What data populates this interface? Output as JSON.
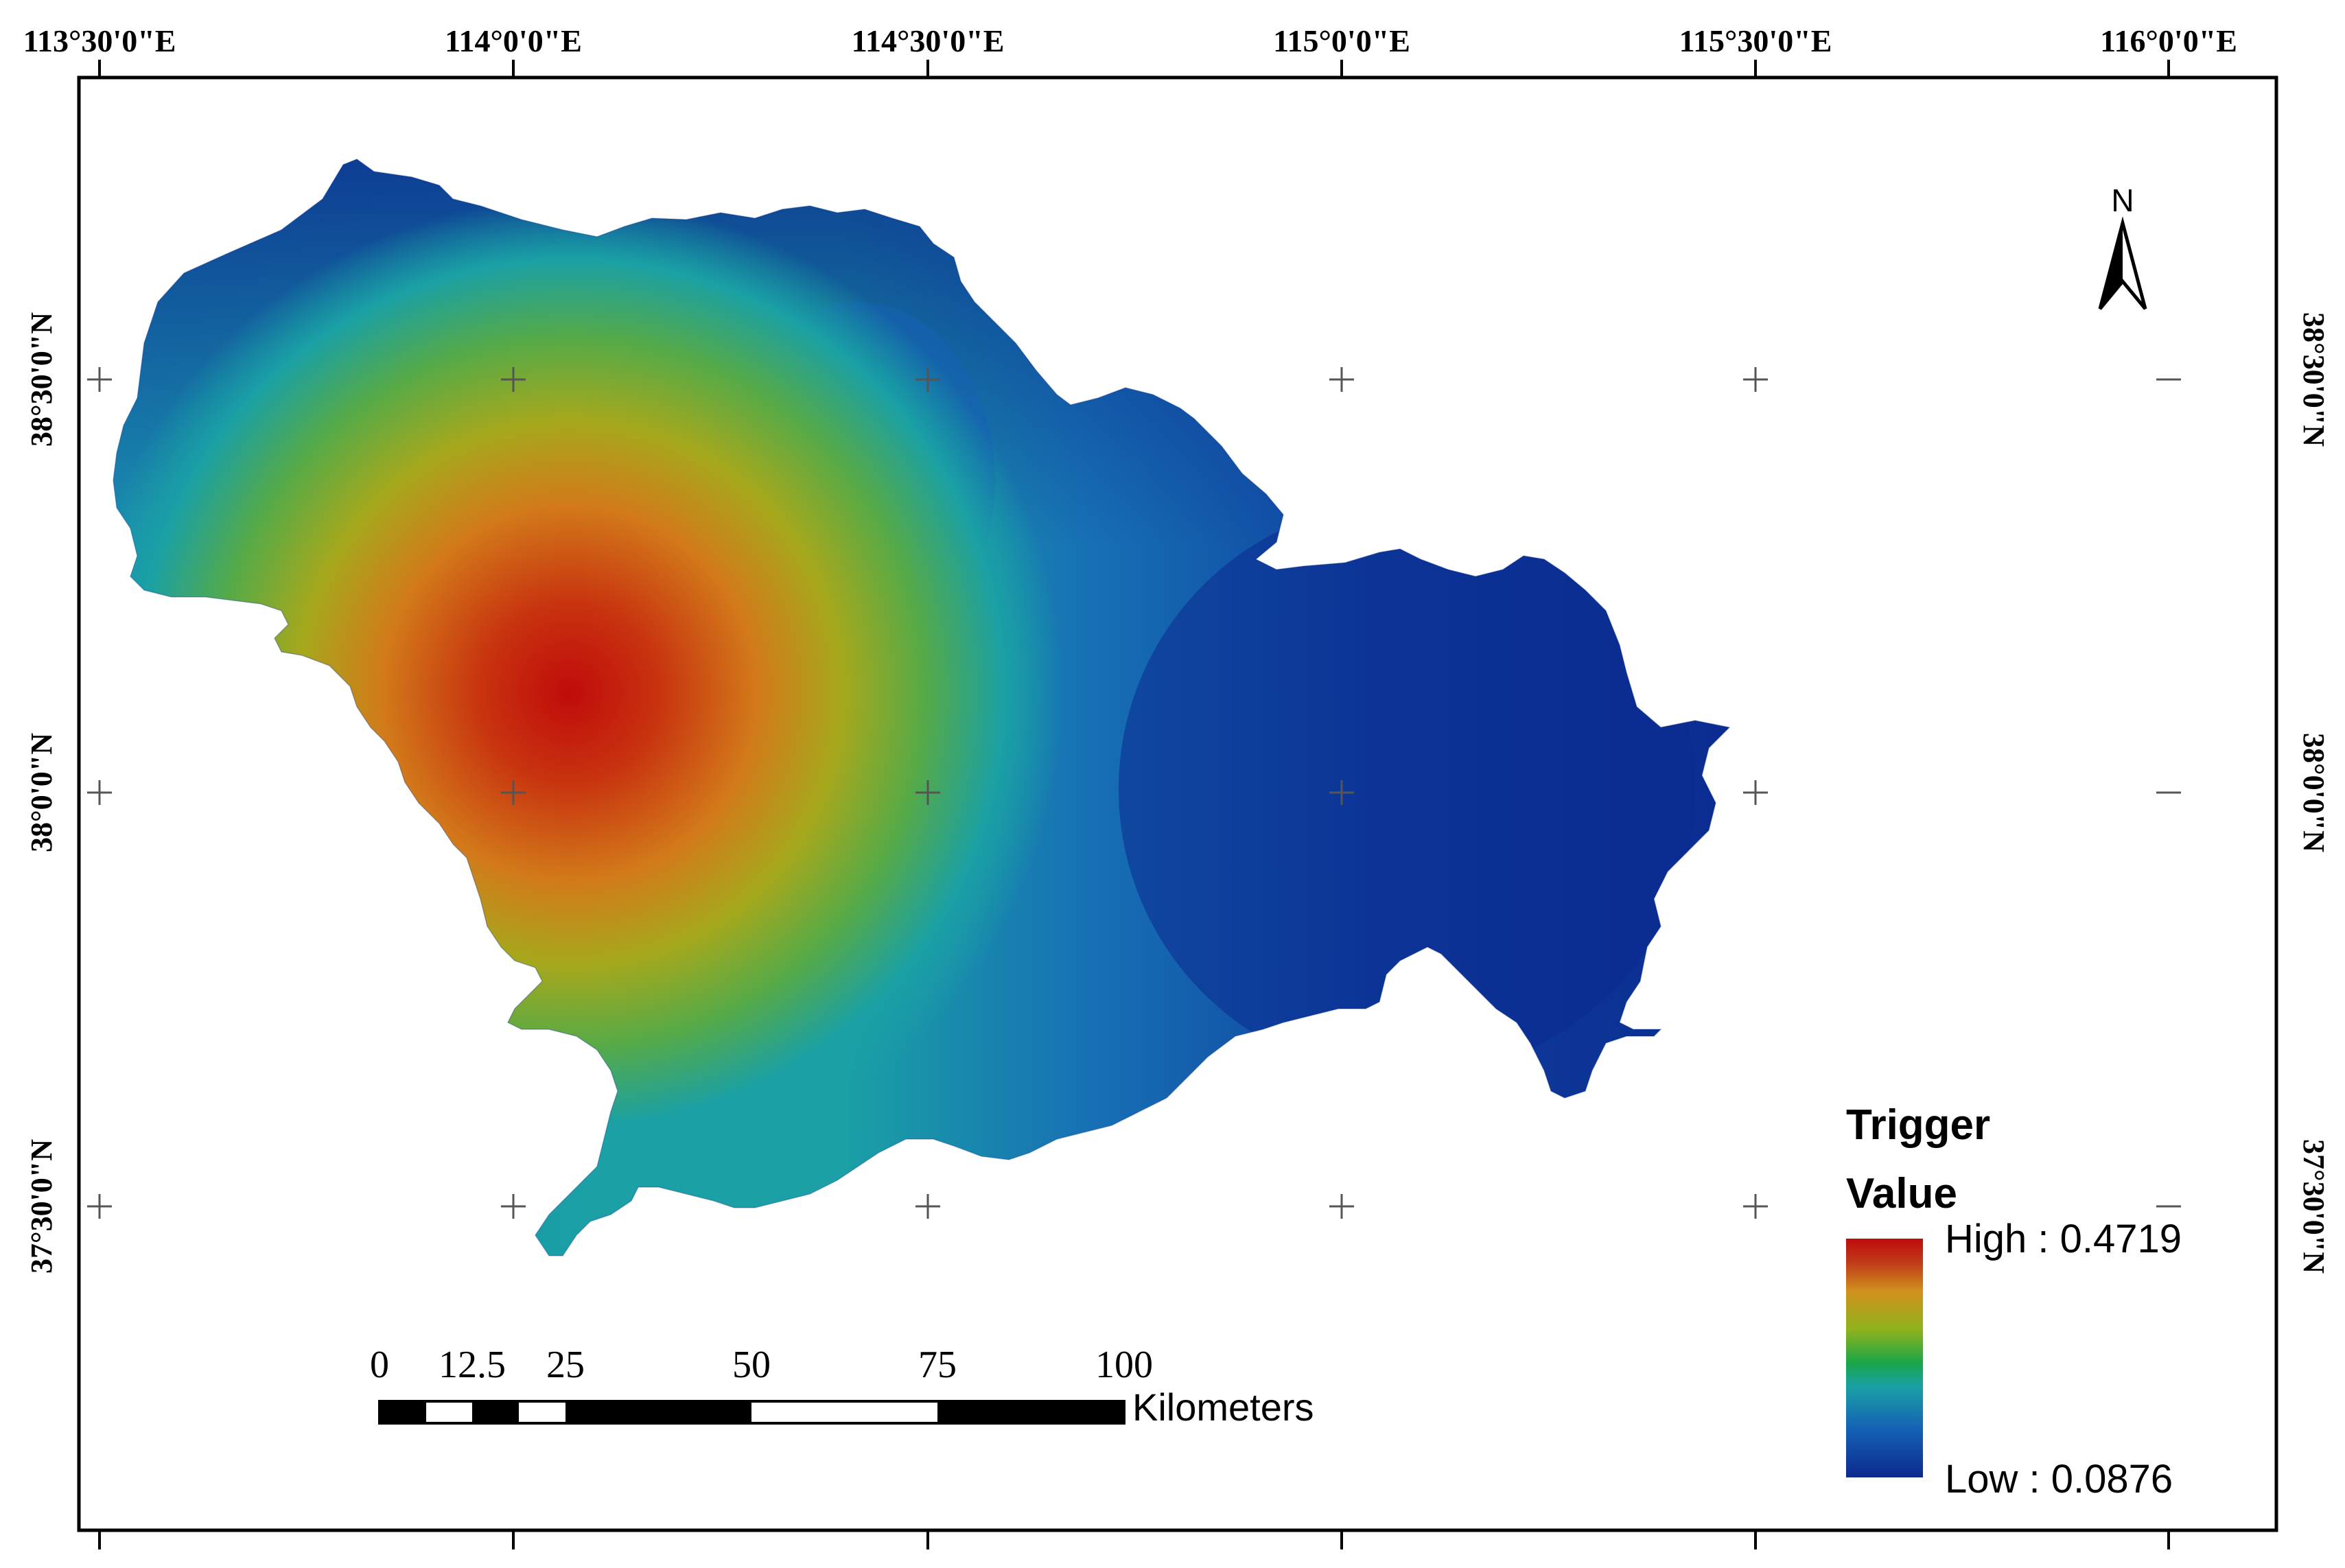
{
  "map": {
    "graticule": {
      "lon_labels": [
        "113°30'0\"E",
        "114°0'0\"E",
        "114°30'0\"E",
        "115°0'0\"E",
        "115°30'0\"E",
        "116°0'0\"E"
      ],
      "lat_labels": [
        "38°30'0\"N",
        "38°0'0\"N",
        "37°30'0\"N"
      ]
    },
    "legend": {
      "title_line1": "Trigger",
      "title_line2": "Value",
      "high_label": "High : 0.4719",
      "low_label": "Low : 0.0876",
      "ramp_colors": [
        "#0b2a8f",
        "#1560b5",
        "#1aa0a5",
        "#1ba64a",
        "#8fb21c",
        "#d0901c",
        "#c03a1a",
        "#c00b0b"
      ]
    },
    "scale_bar": {
      "labels": [
        "0",
        "12.5",
        "25",
        "50",
        "75",
        "100"
      ],
      "unit": "Kilometers"
    },
    "north_arrow": {
      "label": "N"
    },
    "colors": {
      "high": "#c00b0b",
      "mid": "#1aa0a5",
      "low": "#0b2a8f"
    }
  }
}
